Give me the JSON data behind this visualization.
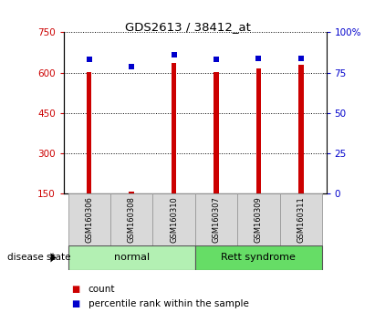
{
  "title": "GDS2613 / 38412_at",
  "samples": [
    "GSM160306",
    "GSM160308",
    "GSM160310",
    "GSM160307",
    "GSM160309",
    "GSM160311"
  ],
  "counts": [
    603,
    157,
    637,
    601,
    617,
    628
  ],
  "percentile_ranks": [
    83,
    79,
    86,
    83,
    84,
    84
  ],
  "ymin": 150,
  "ymax": 750,
  "yticks_left": [
    150,
    300,
    450,
    600,
    750
  ],
  "yticks_right": [
    0,
    25,
    50,
    75,
    100
  ],
  "bar_color": "#cc0000",
  "dot_color": "#0000cc",
  "bar_width": 0.12,
  "label_count": "count",
  "label_percentile": "percentile rank within the sample",
  "disease_state_label": "disease state",
  "normal_color": "#b3f0b3",
  "rett_color": "#66dd66",
  "sample_box_color": "#d9d9d9",
  "figsize": [
    4.11,
    3.54
  ],
  "dpi": 100
}
